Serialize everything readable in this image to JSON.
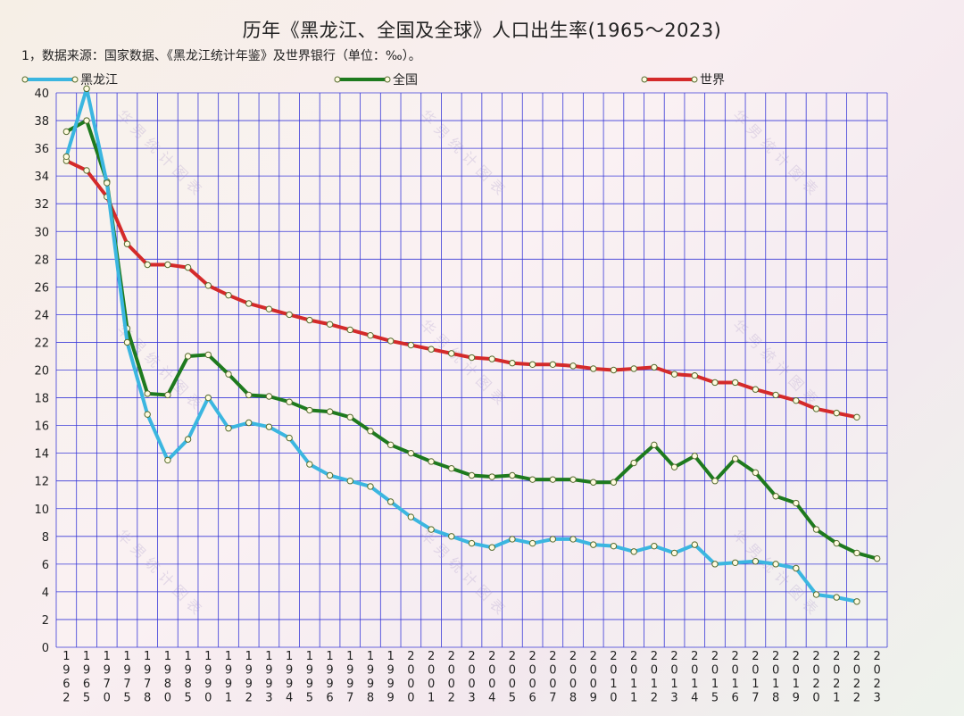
{
  "chart_data": {
    "type": "line",
    "title": "历年《黑龙江、全国及全球》人口出生率(1965～2023)",
    "subtitle": "1，数据来源：国家数据、《黑龙江统计年鉴》及世界银行（单位：‰）。",
    "x_ticks": [
      "1962",
      "1965",
      "1970",
      "1975",
      "1978",
      "1980",
      "1985",
      "1990",
      "1991",
      "1992",
      "1993",
      "1994",
      "1995",
      "1996",
      "1997",
      "1998",
      "1999",
      "2000",
      "2001",
      "2002",
      "2003",
      "2004",
      "2005",
      "2006",
      "2007",
      "2008",
      "2009",
      "2010",
      "2011",
      "2012",
      "2013",
      "2014",
      "2015",
      "2016",
      "2017",
      "2018",
      "2019",
      "2020",
      "2021",
      "2022",
      "2023"
    ],
    "ylim": [
      0,
      40
    ],
    "y_ticks": [
      0,
      2,
      4,
      6,
      8,
      10,
      12,
      14,
      16,
      18,
      20,
      22,
      24,
      26,
      28,
      30,
      32,
      34,
      36,
      38,
      40
    ],
    "grid": true,
    "legend_placement": "top",
    "series": [
      {
        "name": "黑龙江",
        "color": "#3bb6e0",
        "values": [
          35.4,
          40.3,
          33.5,
          22.0,
          16.8,
          13.5,
          15.0,
          18.0,
          15.8,
          16.2,
          15.9,
          15.1,
          13.2,
          12.4,
          12.0,
          11.6,
          10.5,
          9.4,
          8.5,
          8.0,
          7.5,
          7.2,
          7.8,
          7.5,
          7.8,
          7.8,
          7.4,
          7.3,
          6.9,
          7.3,
          6.8,
          7.4,
          6.0,
          6.1,
          6.2,
          6.0,
          5.7,
          3.8,
          3.6,
          3.3,
          null
        ]
      },
      {
        "name": "全国",
        "color": "#1e7a1e",
        "values": [
          37.2,
          38.0,
          33.6,
          23.0,
          18.3,
          18.2,
          21.0,
          21.1,
          19.7,
          18.2,
          18.1,
          17.7,
          17.1,
          17.0,
          16.6,
          15.6,
          14.6,
          14.0,
          13.4,
          12.9,
          12.4,
          12.3,
          12.4,
          12.1,
          12.1,
          12.1,
          11.9,
          11.9,
          13.3,
          14.6,
          13.0,
          13.8,
          12.0,
          13.6,
          12.6,
          10.9,
          10.4,
          8.5,
          7.5,
          6.8,
          6.4
        ]
      },
      {
        "name": "世界",
        "color": "#d42a2a",
        "values": [
          35.1,
          34.4,
          32.5,
          29.1,
          27.6,
          27.6,
          27.4,
          26.1,
          25.4,
          24.8,
          24.4,
          24.0,
          23.6,
          23.3,
          22.9,
          22.5,
          22.1,
          21.8,
          21.5,
          21.2,
          20.9,
          20.8,
          20.5,
          20.4,
          20.4,
          20.3,
          20.1,
          20.0,
          20.1,
          20.2,
          19.7,
          19.6,
          19.1,
          19.1,
          18.6,
          18.2,
          17.8,
          17.2,
          16.9,
          16.6,
          null
        ]
      }
    ],
    "watermark": "华男统计图表"
  }
}
